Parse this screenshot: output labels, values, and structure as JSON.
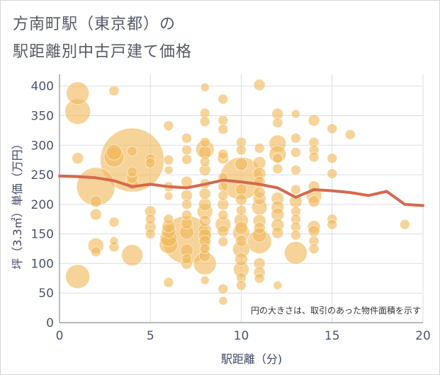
{
  "page": {
    "title_line1": "方南町駅（東京都）の",
    "title_line2": "駅距離別中古戸建て価格"
  },
  "chart_data": {
    "type": "scatter",
    "xlabel": "駅距離（分)",
    "ylabel": "坪（3.3㎡）単価（万円）",
    "xlim": [
      0,
      20
    ],
    "ylim": [
      0,
      420
    ],
    "x_ticks": [
      "0",
      "5",
      "10",
      "15",
      "20"
    ],
    "y_ticks": [
      "0",
      "50",
      "100",
      "150",
      "200",
      "250",
      "300",
      "350",
      "400"
    ],
    "x_tick_values": [
      0,
      5,
      10,
      15,
      20
    ],
    "y_tick_values": [
      0,
      50,
      100,
      150,
      200,
      250,
      300,
      350,
      400
    ],
    "grid": true,
    "annotation": "円の大きさは、取引のあった物件面積を示す",
    "colors": {
      "bubble": "#f0b85a",
      "trend": "#d4694e",
      "grid": "#d9dde6",
      "axis": "#8a8f99"
    },
    "points": [
      {
        "x": 1,
        "y": 388,
        "s": 16
      },
      {
        "x": 1,
        "y": 357,
        "s": 18
      },
      {
        "x": 1,
        "y": 278,
        "s": 8
      },
      {
        "x": 1,
        "y": 78,
        "s": 17
      },
      {
        "x": 2,
        "y": 230,
        "s": 27
      },
      {
        "x": 2,
        "y": 205,
        "s": 8
      },
      {
        "x": 2,
        "y": 183,
        "s": 8
      },
      {
        "x": 2,
        "y": 130,
        "s": 11
      },
      {
        "x": 2,
        "y": 120,
        "s": 7
      },
      {
        "x": 3,
        "y": 392,
        "s": 7
      },
      {
        "x": 3,
        "y": 288,
        "s": 11
      },
      {
        "x": 3,
        "y": 280,
        "s": 14
      },
      {
        "x": 3,
        "y": 170,
        "s": 7
      },
      {
        "x": 3,
        "y": 138,
        "s": 6
      },
      {
        "x": 3,
        "y": 128,
        "s": 7
      },
      {
        "x": 4,
        "y": 275,
        "s": 45
      },
      {
        "x": 4,
        "y": 290,
        "s": 7
      },
      {
        "x": 4,
        "y": 255,
        "s": 7
      },
      {
        "x": 4,
        "y": 245,
        "s": 8
      },
      {
        "x": 4,
        "y": 235,
        "s": 9
      },
      {
        "x": 4,
        "y": 114,
        "s": 15
      },
      {
        "x": 5,
        "y": 277,
        "s": 7
      },
      {
        "x": 5,
        "y": 270,
        "s": 7
      },
      {
        "x": 5,
        "y": 188,
        "s": 8
      },
      {
        "x": 5,
        "y": 175,
        "s": 7
      },
      {
        "x": 5,
        "y": 162,
        "s": 8
      },
      {
        "x": 5,
        "y": 150,
        "s": 7
      },
      {
        "x": 6,
        "y": 333,
        "s": 7
      },
      {
        "x": 6,
        "y": 275,
        "s": 7
      },
      {
        "x": 6,
        "y": 258,
        "s": 6
      },
      {
        "x": 6,
        "y": 230,
        "s": 7
      },
      {
        "x": 6,
        "y": 214,
        "s": 6
      },
      {
        "x": 6,
        "y": 175,
        "s": 7
      },
      {
        "x": 6,
        "y": 163,
        "s": 9
      },
      {
        "x": 6,
        "y": 155,
        "s": 10
      },
      {
        "x": 6,
        "y": 143,
        "s": 12
      },
      {
        "x": 6,
        "y": 132,
        "s": 13
      },
      {
        "x": 6,
        "y": 68,
        "s": 7
      },
      {
        "x": 7,
        "y": 312,
        "s": 7
      },
      {
        "x": 7,
        "y": 292,
        "s": 7
      },
      {
        "x": 7,
        "y": 276,
        "s": 7
      },
      {
        "x": 7,
        "y": 238,
        "s": 8
      },
      {
        "x": 7,
        "y": 215,
        "s": 8
      },
      {
        "x": 7,
        "y": 200,
        "s": 7
      },
      {
        "x": 7,
        "y": 182,
        "s": 7
      },
      {
        "x": 7,
        "y": 168,
        "s": 8
      },
      {
        "x": 7,
        "y": 153,
        "s": 10
      },
      {
        "x": 7,
        "y": 140,
        "s": 34
      },
      {
        "x": 7,
        "y": 122,
        "s": 9
      },
      {
        "x": 7,
        "y": 108,
        "s": 7
      },
      {
        "x": 7,
        "y": 100,
        "s": 8
      },
      {
        "x": 8,
        "y": 398,
        "s": 6
      },
      {
        "x": 8,
        "y": 354,
        "s": 7
      },
      {
        "x": 8,
        "y": 340,
        "s": 7
      },
      {
        "x": 8,
        "y": 305,
        "s": 7
      },
      {
        "x": 8,
        "y": 293,
        "s": 13
      },
      {
        "x": 8,
        "y": 288,
        "s": 9
      },
      {
        "x": 8,
        "y": 272,
        "s": 7
      },
      {
        "x": 8,
        "y": 258,
        "s": 8
      },
      {
        "x": 8,
        "y": 235,
        "s": 7
      },
      {
        "x": 8,
        "y": 218,
        "s": 8
      },
      {
        "x": 8,
        "y": 200,
        "s": 9
      },
      {
        "x": 8,
        "y": 188,
        "s": 11
      },
      {
        "x": 8,
        "y": 172,
        "s": 8
      },
      {
        "x": 8,
        "y": 157,
        "s": 9
      },
      {
        "x": 8,
        "y": 148,
        "s": 9
      },
      {
        "x": 8,
        "y": 138,
        "s": 8
      },
      {
        "x": 8,
        "y": 125,
        "s": 7
      },
      {
        "x": 8,
        "y": 113,
        "s": 8
      },
      {
        "x": 8,
        "y": 100,
        "s": 16
      },
      {
        "x": 8,
        "y": 72,
        "s": 6
      },
      {
        "x": 9,
        "y": 378,
        "s": 7
      },
      {
        "x": 9,
        "y": 342,
        "s": 7
      },
      {
        "x": 9,
        "y": 327,
        "s": 7
      },
      {
        "x": 9,
        "y": 285,
        "s": 7
      },
      {
        "x": 9,
        "y": 278,
        "s": 8
      },
      {
        "x": 9,
        "y": 245,
        "s": 7
      },
      {
        "x": 9,
        "y": 230,
        "s": 7
      },
      {
        "x": 9,
        "y": 215,
        "s": 7
      },
      {
        "x": 9,
        "y": 200,
        "s": 8
      },
      {
        "x": 9,
        "y": 182,
        "s": 7
      },
      {
        "x": 9,
        "y": 166,
        "s": 11
      },
      {
        "x": 9,
        "y": 155,
        "s": 8
      },
      {
        "x": 9,
        "y": 137,
        "s": 7
      },
      {
        "x": 9,
        "y": 57,
        "s": 7
      },
      {
        "x": 9,
        "y": 37,
        "s": 6
      },
      {
        "x": 10,
        "y": 305,
        "s": 7
      },
      {
        "x": 10,
        "y": 292,
        "s": 7
      },
      {
        "x": 10,
        "y": 268,
        "s": 9
      },
      {
        "x": 10,
        "y": 244,
        "s": 30
      },
      {
        "x": 10,
        "y": 225,
        "s": 8
      },
      {
        "x": 10,
        "y": 208,
        "s": 8
      },
      {
        "x": 10,
        "y": 190,
        "s": 7
      },
      {
        "x": 10,
        "y": 173,
        "s": 10
      },
      {
        "x": 10,
        "y": 160,
        "s": 9
      },
      {
        "x": 10,
        "y": 152,
        "s": 12
      },
      {
        "x": 10,
        "y": 138,
        "s": 8
      },
      {
        "x": 10,
        "y": 124,
        "s": 12
      },
      {
        "x": 10,
        "y": 107,
        "s": 9
      },
      {
        "x": 10,
        "y": 90,
        "s": 11
      },
      {
        "x": 10,
        "y": 76,
        "s": 7
      },
      {
        "x": 10,
        "y": 63,
        "s": 7
      },
      {
        "x": 11,
        "y": 402,
        "s": 8
      },
      {
        "x": 11,
        "y": 295,
        "s": 7
      },
      {
        "x": 11,
        "y": 270,
        "s": 9
      },
      {
        "x": 11,
        "y": 252,
        "s": 9
      },
      {
        "x": 11,
        "y": 238,
        "s": 8
      },
      {
        "x": 11,
        "y": 220,
        "s": 8
      },
      {
        "x": 11,
        "y": 210,
        "s": 9
      },
      {
        "x": 11,
        "y": 195,
        "s": 11
      },
      {
        "x": 11,
        "y": 172,
        "s": 9
      },
      {
        "x": 11,
        "y": 160,
        "s": 8
      },
      {
        "x": 11,
        "y": 148,
        "s": 10
      },
      {
        "x": 11,
        "y": 137,
        "s": 17
      },
      {
        "x": 11,
        "y": 100,
        "s": 8
      },
      {
        "x": 11,
        "y": 85,
        "s": 8
      },
      {
        "x": 11,
        "y": 75,
        "s": 7
      },
      {
        "x": 12,
        "y": 353,
        "s": 8
      },
      {
        "x": 12,
        "y": 338,
        "s": 7
      },
      {
        "x": 12,
        "y": 303,
        "s": 12
      },
      {
        "x": 12,
        "y": 285,
        "s": 12
      },
      {
        "x": 12,
        "y": 278,
        "s": 7
      },
      {
        "x": 12,
        "y": 260,
        "s": 7
      },
      {
        "x": 12,
        "y": 210,
        "s": 9
      },
      {
        "x": 12,
        "y": 195,
        "s": 9
      },
      {
        "x": 12,
        "y": 183,
        "s": 9
      },
      {
        "x": 12,
        "y": 165,
        "s": 9
      },
      {
        "x": 12,
        "y": 152,
        "s": 8
      },
      {
        "x": 12,
        "y": 63,
        "s": 6
      },
      {
        "x": 13,
        "y": 353,
        "s": 6
      },
      {
        "x": 13,
        "y": 312,
        "s": 7
      },
      {
        "x": 13,
        "y": 288,
        "s": 7
      },
      {
        "x": 13,
        "y": 258,
        "s": 7
      },
      {
        "x": 13,
        "y": 225,
        "s": 7
      },
      {
        "x": 13,
        "y": 205,
        "s": 9
      },
      {
        "x": 13,
        "y": 188,
        "s": 7
      },
      {
        "x": 13,
        "y": 175,
        "s": 7
      },
      {
        "x": 13,
        "y": 162,
        "s": 7
      },
      {
        "x": 13,
        "y": 148,
        "s": 7
      },
      {
        "x": 13,
        "y": 118,
        "s": 16
      },
      {
        "x": 14,
        "y": 342,
        "s": 8
      },
      {
        "x": 14,
        "y": 305,
        "s": 7
      },
      {
        "x": 14,
        "y": 292,
        "s": 7
      },
      {
        "x": 14,
        "y": 280,
        "s": 7
      },
      {
        "x": 14,
        "y": 230,
        "s": 8
      },
      {
        "x": 14,
        "y": 215,
        "s": 11
      },
      {
        "x": 14,
        "y": 205,
        "s": 8
      },
      {
        "x": 14,
        "y": 162,
        "s": 9
      },
      {
        "x": 14,
        "y": 155,
        "s": 8
      },
      {
        "x": 14,
        "y": 138,
        "s": 7
      },
      {
        "x": 14,
        "y": 125,
        "s": 7
      },
      {
        "x": 15,
        "y": 328,
        "s": 7
      },
      {
        "x": 15,
        "y": 278,
        "s": 7
      },
      {
        "x": 15,
        "y": 252,
        "s": 7
      },
      {
        "x": 15,
        "y": 175,
        "s": 7
      },
      {
        "x": 15,
        "y": 166,
        "s": 7
      },
      {
        "x": 16,
        "y": 318,
        "s": 7
      },
      {
        "x": 19,
        "y": 166,
        "s": 7
      }
    ],
    "trend": {
      "x": [
        0,
        1,
        2,
        3,
        4,
        5,
        6,
        7,
        8,
        9,
        10,
        11,
        12,
        13,
        14,
        15,
        16,
        17,
        18,
        19,
        20
      ],
      "y": [
        248,
        247,
        245,
        240,
        230,
        234,
        230,
        228,
        234,
        241,
        238,
        234,
        228,
        212,
        225,
        223,
        220,
        215,
        222,
        200,
        198
      ]
    }
  }
}
